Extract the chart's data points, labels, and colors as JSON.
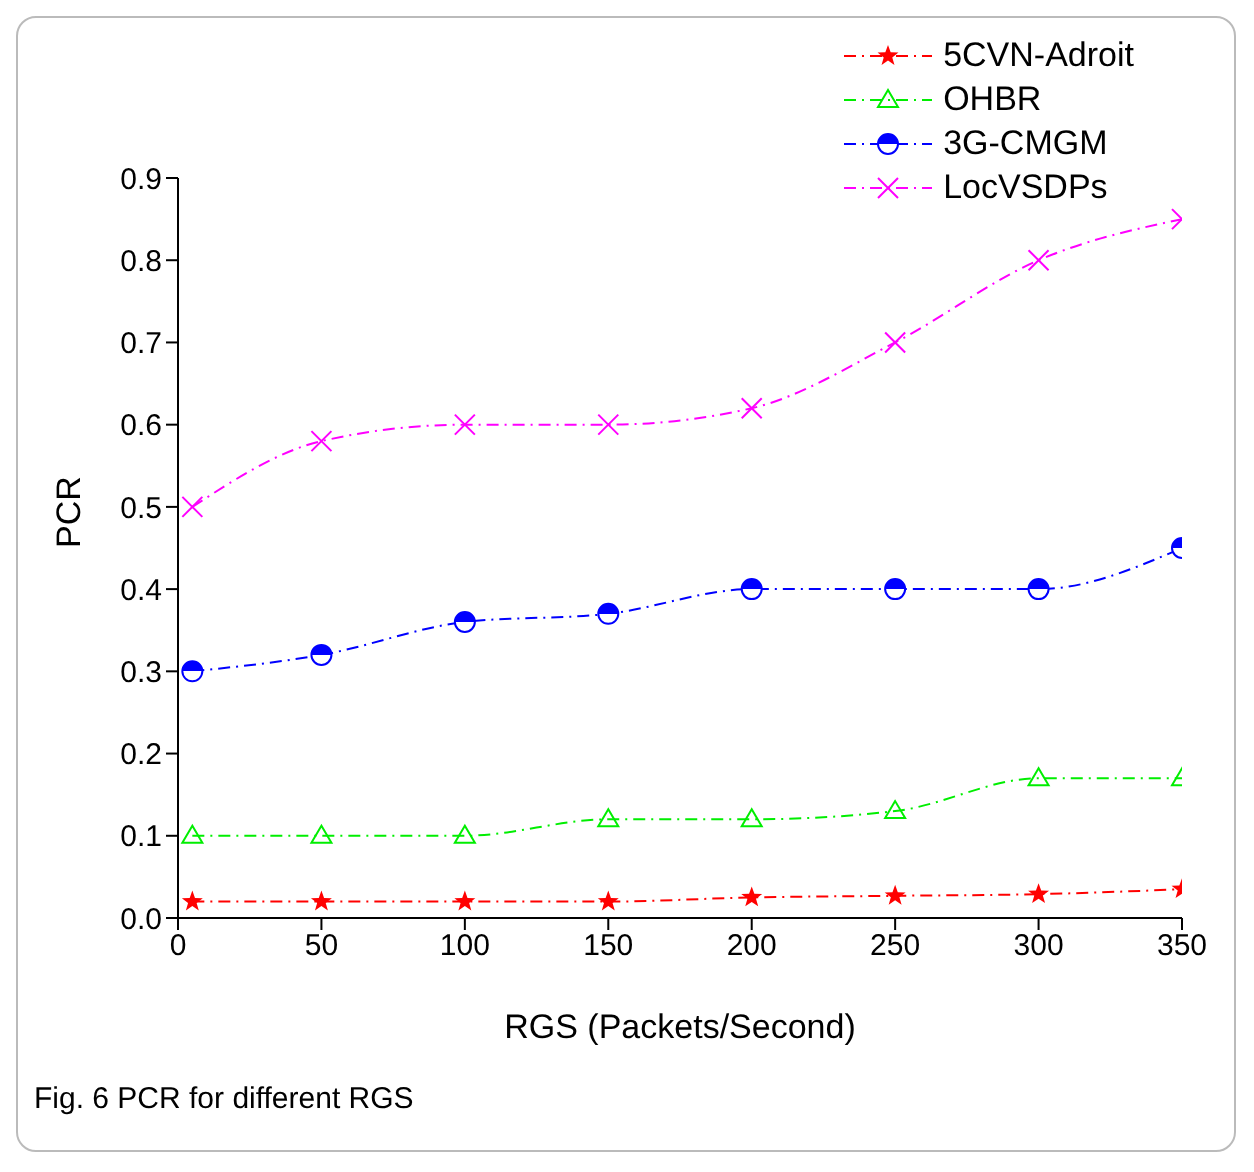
{
  "chart_data": {
    "type": "line",
    "xlabel": "RGS (Packets/Second)",
    "ylabel": "PCR",
    "annotations": [
      "Fig. 6 PCR for different RGS"
    ],
    "x": [
      5,
      50,
      100,
      150,
      200,
      250,
      300,
      350
    ],
    "series": [
      {
        "name": "5CVN-Adroit",
        "color": "#ff0000",
        "marker": "star",
        "values": [
          0.02,
          0.02,
          0.02,
          0.02,
          0.025,
          0.027,
          0.029,
          0.035
        ]
      },
      {
        "name": "OHBR",
        "color": "#00ee00",
        "marker": "triangle",
        "values": [
          0.1,
          0.1,
          0.1,
          0.12,
          0.12,
          0.13,
          0.17,
          0.17
        ]
      },
      {
        "name": "3G-CMGM",
        "color": "#0000ff",
        "marker": "circle",
        "values": [
          0.3,
          0.32,
          0.36,
          0.37,
          0.4,
          0.4,
          0.4,
          0.45
        ]
      },
      {
        "name": "LocVSDPs",
        "color": "#ff00ff",
        "marker": "cross",
        "values": [
          0.5,
          0.58,
          0.6,
          0.6,
          0.62,
          0.7,
          0.8,
          0.85
        ]
      }
    ],
    "xlim": [
      0,
      350
    ],
    "xticks": [
      0,
      50,
      100,
      150,
      200,
      250,
      300,
      350
    ],
    "ylim": [
      0,
      0.9
    ],
    "yticks": [
      {
        "value": 0,
        "label": "0.0"
      },
      0.1,
      0.2,
      0.3,
      0.4,
      0.5,
      0.6,
      0.7,
      0.8,
      0.9
    ],
    "grid": false,
    "legend": "top right",
    "line_style": "dashed"
  }
}
